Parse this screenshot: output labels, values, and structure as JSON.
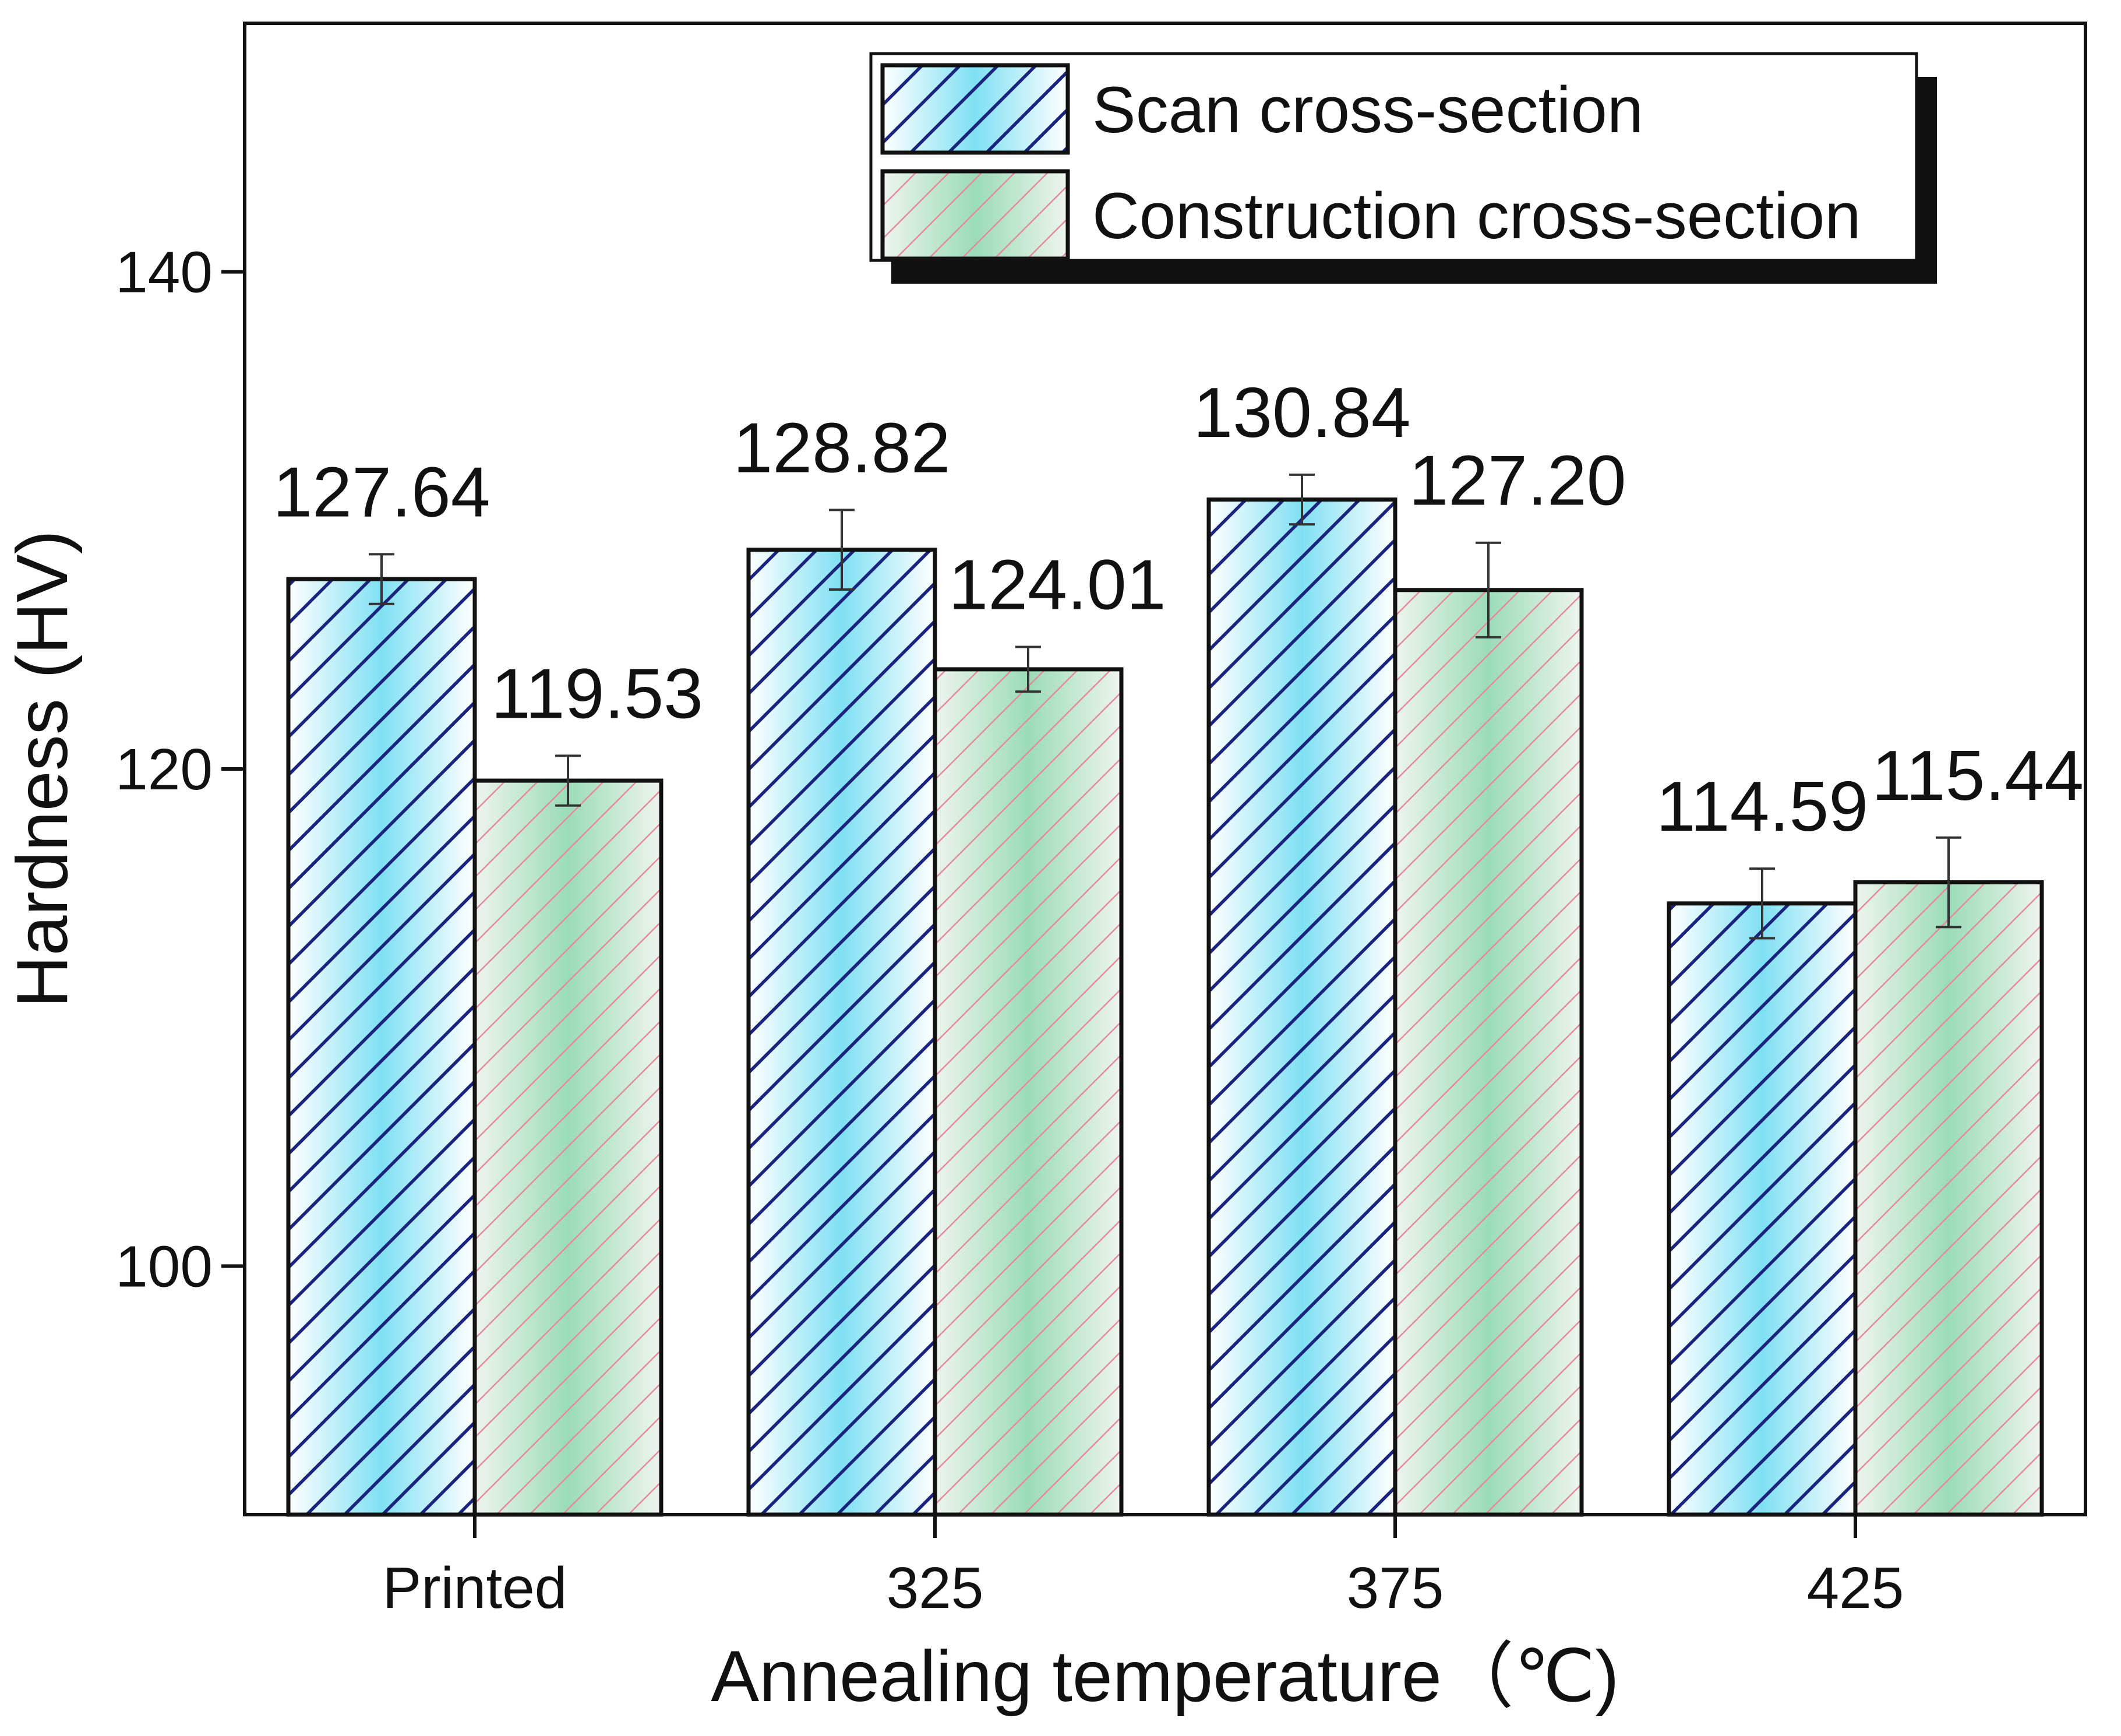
{
  "chart_data": {
    "type": "bar",
    "title": "",
    "xlabel": "Annealing temperature（℃)",
    "ylabel": "Hardness (HV)",
    "categories": [
      "Printed",
      "325",
      "375",
      "425"
    ],
    "ylim": [
      90,
      150
    ],
    "yticks": [
      100,
      120,
      140
    ],
    "grid": false,
    "legend_position": "top-right",
    "series": [
      {
        "name": "Scan cross-section",
        "values": [
          127.64,
          128.82,
          130.84,
          114.59
        ],
        "labels": [
          "127.64",
          "128.82",
          "130.84",
          "114.59"
        ],
        "error": [
          1.0,
          1.6,
          1.0,
          1.4
        ],
        "color": "#1a237e",
        "fill": "#6fd9ee",
        "hatch": "diagonal-navy"
      },
      {
        "name": "Construction cross-section",
        "values": [
          119.53,
          124.01,
          127.2,
          115.44
        ],
        "labels": [
          "119.53",
          "124.01",
          "127.20",
          "115.44"
        ],
        "error": [
          1.0,
          0.9,
          1.9,
          1.8
        ],
        "color": "#e88a9c",
        "fill": "#8fdcb0",
        "hatch": "diagonal-pink"
      }
    ]
  }
}
